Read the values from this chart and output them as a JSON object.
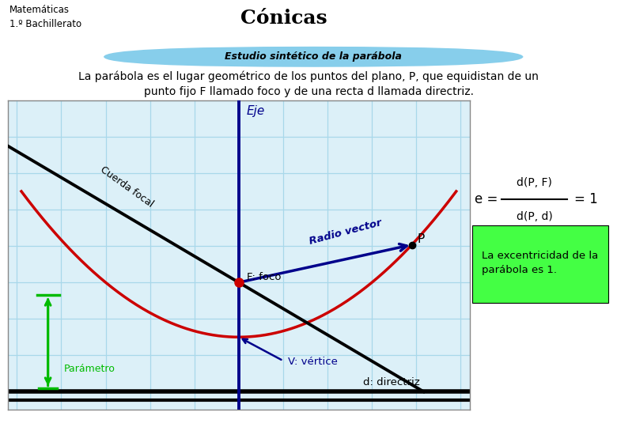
{
  "title": "Cónicas",
  "subtitle": "Estudio sintético de la parábola",
  "header_left": "Matemáticas\n1.º Bachillerato",
  "definition_line1": "La parábola es el lugar geométrico de los puntos del plano, P, que equidistan de un",
  "definition_line2": "punto fijo F llamado foco y de una recta d llamada directriz.",
  "bg_yellow": "#FFE800",
  "bg_blue_light": "#B8D8E8",
  "bg_subtitle": "#87CEEB",
  "bg_grid": "#DCF0F8",
  "sm_red": "#CC1111",
  "sm_white": "#FFFFFF",
  "parabola_color": "#CC0000",
  "axis_color": "#00008B",
  "cuerda_color": "#000000",
  "radio_color": "#00008B",
  "parametro_color": "#00BB00",
  "grid_color": "#A8D8EA",
  "focus_color": "#CC0000",
  "text_blue": "#00008B",
  "green_box_bg": "#44FF44",
  "white": "#FFFFFF",
  "fraction_num": "d(P, F)",
  "fraction_den": "d(P, d)",
  "green_box_text": "La excentricidad de la\nparábola es 1.",
  "eje_label": "Eje",
  "cuerda_label": "Cuerda focal",
  "radio_label": "Radio vector",
  "foco_label": "F: foco",
  "vertice_label": "V: vértice",
  "directriz_label": "d: directriz",
  "parametro_label": "Parámetro",
  "P_label": "P",
  "border_color": "#888888"
}
